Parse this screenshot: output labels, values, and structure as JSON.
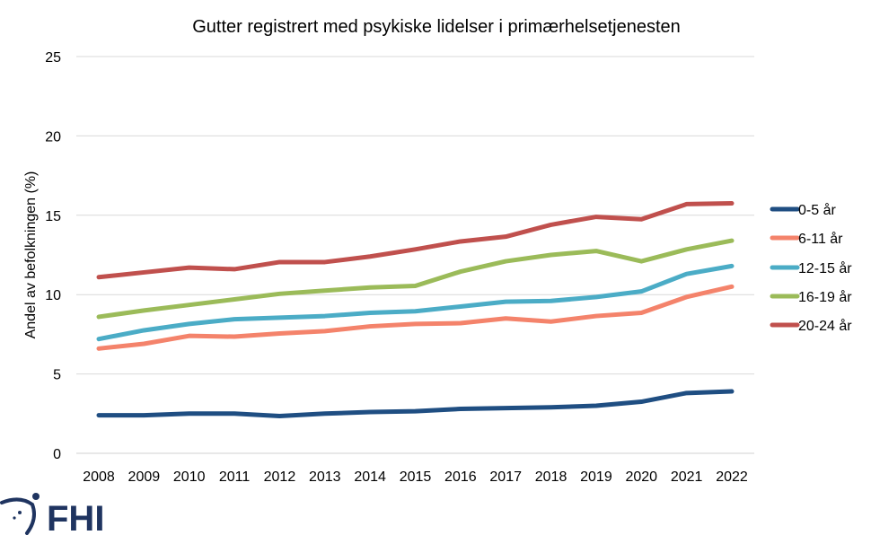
{
  "chart_data": {
    "type": "line",
    "title": "Gutter registrert med psykiske lidelser i primærhelsetjenesten",
    "xlabel": "",
    "ylabel": "Andel av befolkningen (%)",
    "ylim": [
      0,
      25
    ],
    "yticks": [
      0,
      5,
      10,
      15,
      20,
      25
    ],
    "grid": true,
    "legend_position": "right",
    "x": [
      "2008",
      "2009",
      "2010",
      "2011",
      "2012",
      "2013",
      "2014",
      "2015",
      "2016",
      "2017",
      "2018",
      "2019",
      "2020",
      "2021",
      "2022"
    ],
    "series": [
      {
        "name": "0-5 år",
        "color": "#1f4e82",
        "values": [
          2.4,
          2.4,
          2.5,
          2.5,
          2.35,
          2.5,
          2.6,
          2.65,
          2.8,
          2.85,
          2.9,
          3.0,
          3.25,
          3.8,
          3.9
        ]
      },
      {
        "name": "6-11 år",
        "color": "#f4836b",
        "values": [
          6.6,
          6.9,
          7.4,
          7.35,
          7.55,
          7.7,
          8.0,
          8.15,
          8.2,
          8.5,
          8.3,
          8.65,
          8.85,
          9.85,
          10.5
        ]
      },
      {
        "name": "12-15 år",
        "color": "#4bacc6",
        "values": [
          7.2,
          7.75,
          8.15,
          8.45,
          8.55,
          8.65,
          8.85,
          8.95,
          9.25,
          9.55,
          9.6,
          9.85,
          10.2,
          11.3,
          11.8
        ]
      },
      {
        "name": "16-19 år",
        "color": "#9bbb59",
        "values": [
          8.6,
          9.0,
          9.35,
          9.7,
          10.05,
          10.25,
          10.45,
          10.55,
          11.45,
          12.1,
          12.5,
          12.75,
          12.1,
          12.85,
          13.4
        ]
      },
      {
        "name": "20-24 år",
        "color": "#c0504d",
        "values": [
          11.1,
          11.4,
          11.7,
          11.6,
          12.05,
          12.05,
          12.4,
          12.85,
          13.35,
          13.65,
          14.4,
          14.9,
          14.75,
          15.7,
          15.75
        ]
      }
    ]
  },
  "logo": {
    "text": "FHI"
  }
}
